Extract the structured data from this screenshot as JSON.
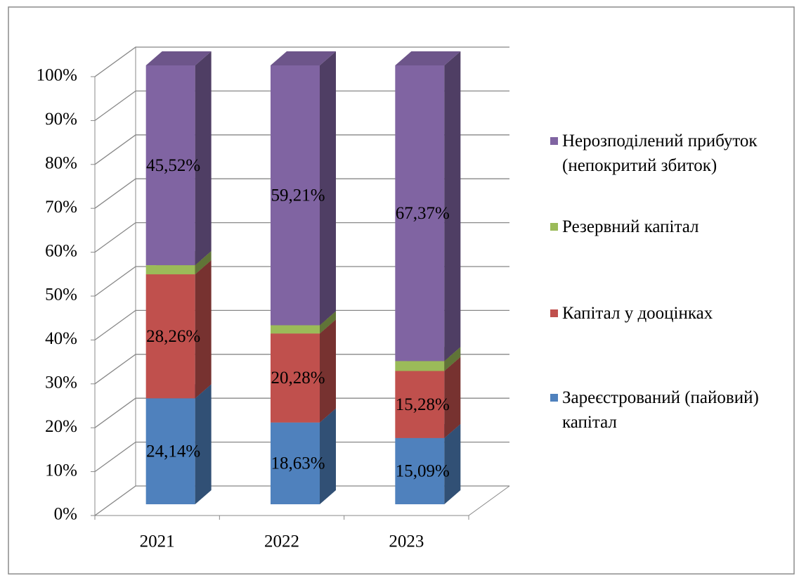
{
  "chart_data": {
    "type": "bar3d_stacked",
    "categories": [
      "2021",
      "2022",
      "2023"
    ],
    "series": [
      {
        "name": "Зареєстрований (пайовий) капітал",
        "color": "#4f81bd",
        "values": [
          24.14,
          18.63,
          15.09
        ],
        "value_labels": [
          "24,14%",
          "18,63%",
          "15,09%"
        ]
      },
      {
        "name": "Капітал у дооцінках",
        "color": "#c0504d",
        "values": [
          28.26,
          20.28,
          15.28
        ],
        "value_labels": [
          "28,26%",
          "20,28%",
          "15,28%"
        ]
      },
      {
        "name": "Резервний капітал",
        "color": "#9bbb59",
        "values": [
          2.08,
          1.88,
          2.26
        ]
      },
      {
        "name": "Нерозподілений прибуток (непокритий збиток)",
        "color": "#8064a2",
        "values": [
          45.52,
          59.21,
          67.37
        ],
        "value_labels": [
          "45,52%",
          "59,21%",
          "67,37%"
        ]
      }
    ],
    "ylim": [
      0,
      100
    ],
    "yticks": [
      {
        "value": 0,
        "label": "0%"
      },
      {
        "value": 10,
        "label": "10%"
      },
      {
        "value": 20,
        "label": "20%"
      },
      {
        "value": 30,
        "label": "30%"
      },
      {
        "value": 40,
        "label": "40%"
      },
      {
        "value": 50,
        "label": "50%"
      },
      {
        "value": 60,
        "label": "60%"
      },
      {
        "value": 70,
        "label": "70%"
      },
      {
        "value": 80,
        "label": "80%"
      },
      {
        "value": 90,
        "label": "90%"
      },
      {
        "value": 100,
        "label": "100%"
      }
    ],
    "grid": true,
    "legend": "right"
  }
}
